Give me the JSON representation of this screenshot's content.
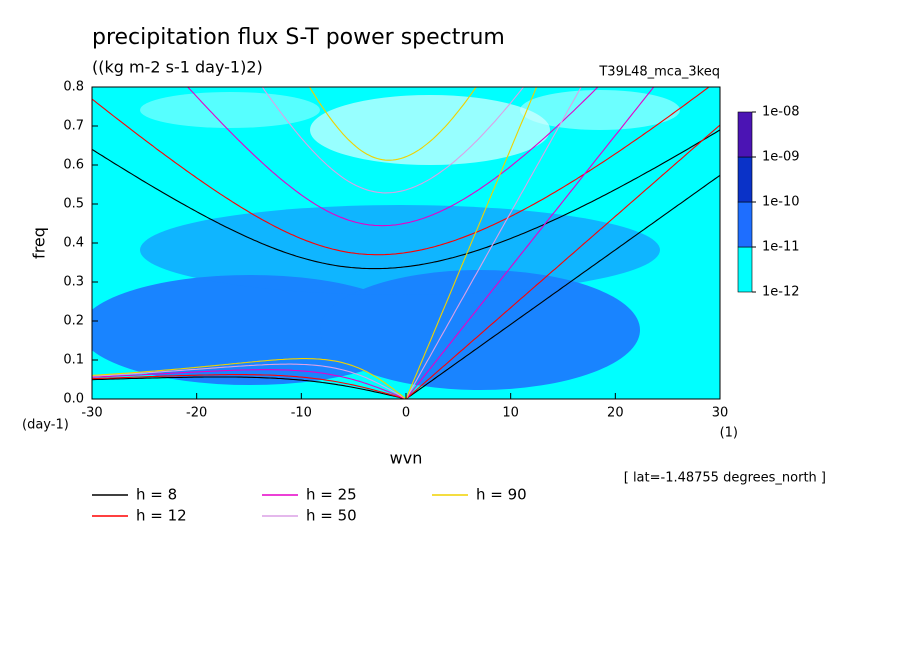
{
  "chart_data": {
    "type": "spectrum",
    "title": "precipitation flux S-T power spectrum",
    "subtitle": "((kg m-2 s-1 day-1)2)",
    "run_label": "T39L48_mca_3keq",
    "note": "[ lat=-1.48755 degrees_north ]",
    "x_label": "wvn",
    "y_label": "freq",
    "y_unit": "(day-1)",
    "x_unit": "(1)",
    "xlim": [
      -30,
      30
    ],
    "xticks": [
      -30,
      -20,
      -10,
      0,
      10,
      20,
      30
    ],
    "ylim": [
      0,
      0.8
    ],
    "yticks": [
      {
        "value": 0,
        "label": "0.0"
      },
      0.1,
      0.2,
      0.3,
      0.4,
      0.5,
      0.6,
      0.7,
      0.8
    ],
    "colorbar": {
      "ticks": [
        {
          "value": 1e-12,
          "label": "1e-12"
        },
        {
          "value": 1e-11,
          "label": "1e-11"
        },
        {
          "value": 1e-10,
          "label": "1e-10"
        },
        {
          "value": 1e-09,
          "label": "1e-09"
        },
        {
          "value": 1e-08,
          "label": "1e-08"
        }
      ],
      "colors": [
        "#00ffff",
        "#1e6eff",
        "#0a32c8",
        "#4b14b4"
      ]
    },
    "series": [
      {
        "name": "h =  8",
        "h": 8,
        "color": "#000000"
      },
      {
        "name": "h = 12",
        "h": 12,
        "color": "#ff0000"
      },
      {
        "name": "h = 25",
        "h": 25,
        "color": "#e600c8"
      },
      {
        "name": "h = 50",
        "h": 50,
        "color": "#dca0e6"
      },
      {
        "name": "h = 90",
        "h": 90,
        "color": "#f0d200"
      }
    ]
  }
}
